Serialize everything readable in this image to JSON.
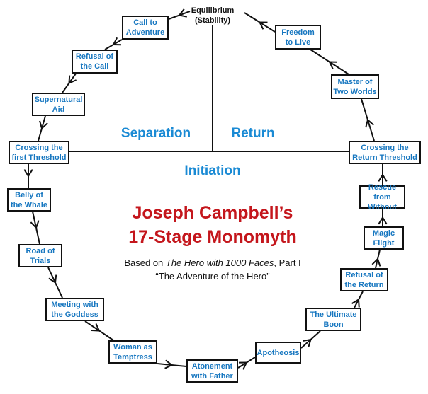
{
  "equilibrium": {
    "line1": "Equilibrium",
    "line2": "(Stability)"
  },
  "phases": {
    "separation": "Separation",
    "return": "Return",
    "initiation": "Initiation"
  },
  "title": {
    "line1": "Joseph Campbell’s",
    "line2": "17-Stage Monomyth"
  },
  "subtitle": {
    "prefix": "Based on ",
    "book": "The Hero with 1000 Faces",
    "suffix": ", Part I",
    "line2": "“The Adventure of the Hero”"
  },
  "stages": [
    "Call to\nAdventure",
    "Refusal of\nthe Call",
    "Supernatural\nAid",
    "Crossing the\nfirst Threshold",
    "Belly of\nthe Whale",
    "Road of\nTrials",
    "Meeting with\nthe Goddess",
    "Woman as\nTemptress",
    "Atonement\nwith Father",
    "Apotheosis",
    "The Ultimate\nBoon",
    "Refusal of\nthe Return",
    "Magic\nFlight",
    "Rescue from\nWithout",
    "Crossing the\nReturn Threshold",
    "Master of\nTwo Worlds",
    "Freedom\nto Live"
  ],
  "colors": {
    "stage_text": "#1777c0",
    "phase_text": "#1a8ad4",
    "title": "#c4161c",
    "lines": "#111111"
  }
}
